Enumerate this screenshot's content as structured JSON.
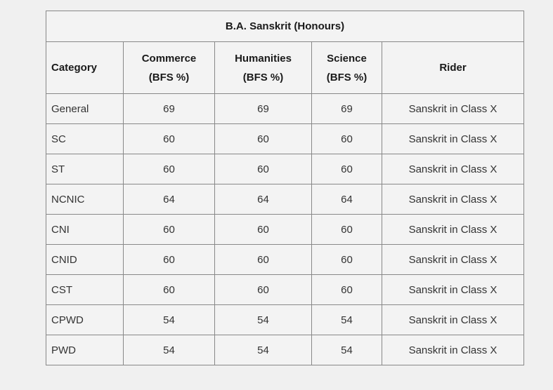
{
  "page": {
    "background_color": "#f0f0f0"
  },
  "table": {
    "title": "B.A. Sanskrit (Honours)",
    "columns": [
      {
        "line1": "Category",
        "line2": ""
      },
      {
        "line1": "Commerce",
        "line2": "(BFS %)"
      },
      {
        "line1": "Humanities",
        "line2": "(BFS %)"
      },
      {
        "line1": "Science",
        "line2": "(BFS %)"
      },
      {
        "line1": "Rider",
        "line2": ""
      }
    ],
    "rows": [
      [
        "General",
        "69",
        "69",
        "69",
        "Sanskrit in Class X"
      ],
      [
        "SC",
        "60",
        "60",
        "60",
        "Sanskrit in Class X"
      ],
      [
        "ST",
        "60",
        "60",
        "60",
        "Sanskrit in Class X"
      ],
      [
        "NCNIC",
        "64",
        "64",
        "64",
        "Sanskrit in Class X"
      ],
      [
        "CNI",
        "60",
        "60",
        "60",
        "Sanskrit in Class X"
      ],
      [
        "CNID",
        "60",
        "60",
        "60",
        "Sanskrit in Class X"
      ],
      [
        "CST",
        "60",
        "60",
        "60",
        "Sanskrit in Class X"
      ],
      [
        "CPWD",
        "54",
        "54",
        "54",
        "Sanskrit in Class X"
      ],
      [
        "PWD",
        "54",
        "54",
        "54",
        "Sanskrit in Class X"
      ]
    ],
    "colors": {
      "page_background": "#f0f0f0",
      "cell_background": "#f3f3f3",
      "border": "#888888",
      "header_text": "#1a1a1a",
      "body_text": "#333333"
    }
  },
  "chart_data": {
    "type": "table",
    "title": "B.A. Sanskrit (Honours)",
    "columns": [
      "Category",
      "Commerce (BFS %)",
      "Humanities (BFS %)",
      "Science (BFS %)",
      "Rider"
    ],
    "rows": [
      [
        "General",
        69,
        69,
        69,
        "Sanskrit in Class X"
      ],
      [
        "SC",
        60,
        60,
        60,
        "Sanskrit in Class X"
      ],
      [
        "ST",
        60,
        60,
        60,
        "Sanskrit in Class X"
      ],
      [
        "NCNIC",
        64,
        64,
        64,
        "Sanskrit in Class X"
      ],
      [
        "CNI",
        60,
        60,
        60,
        "Sanskrit in Class X"
      ],
      [
        "CNID",
        60,
        60,
        60,
        "Sanskrit in Class X"
      ],
      [
        "CST",
        60,
        60,
        60,
        "Sanskrit in Class X"
      ],
      [
        "CPWD",
        54,
        54,
        54,
        "Sanskrit in Class X"
      ],
      [
        "PWD",
        54,
        54,
        54,
        "Sanskrit in Class X"
      ]
    ]
  }
}
